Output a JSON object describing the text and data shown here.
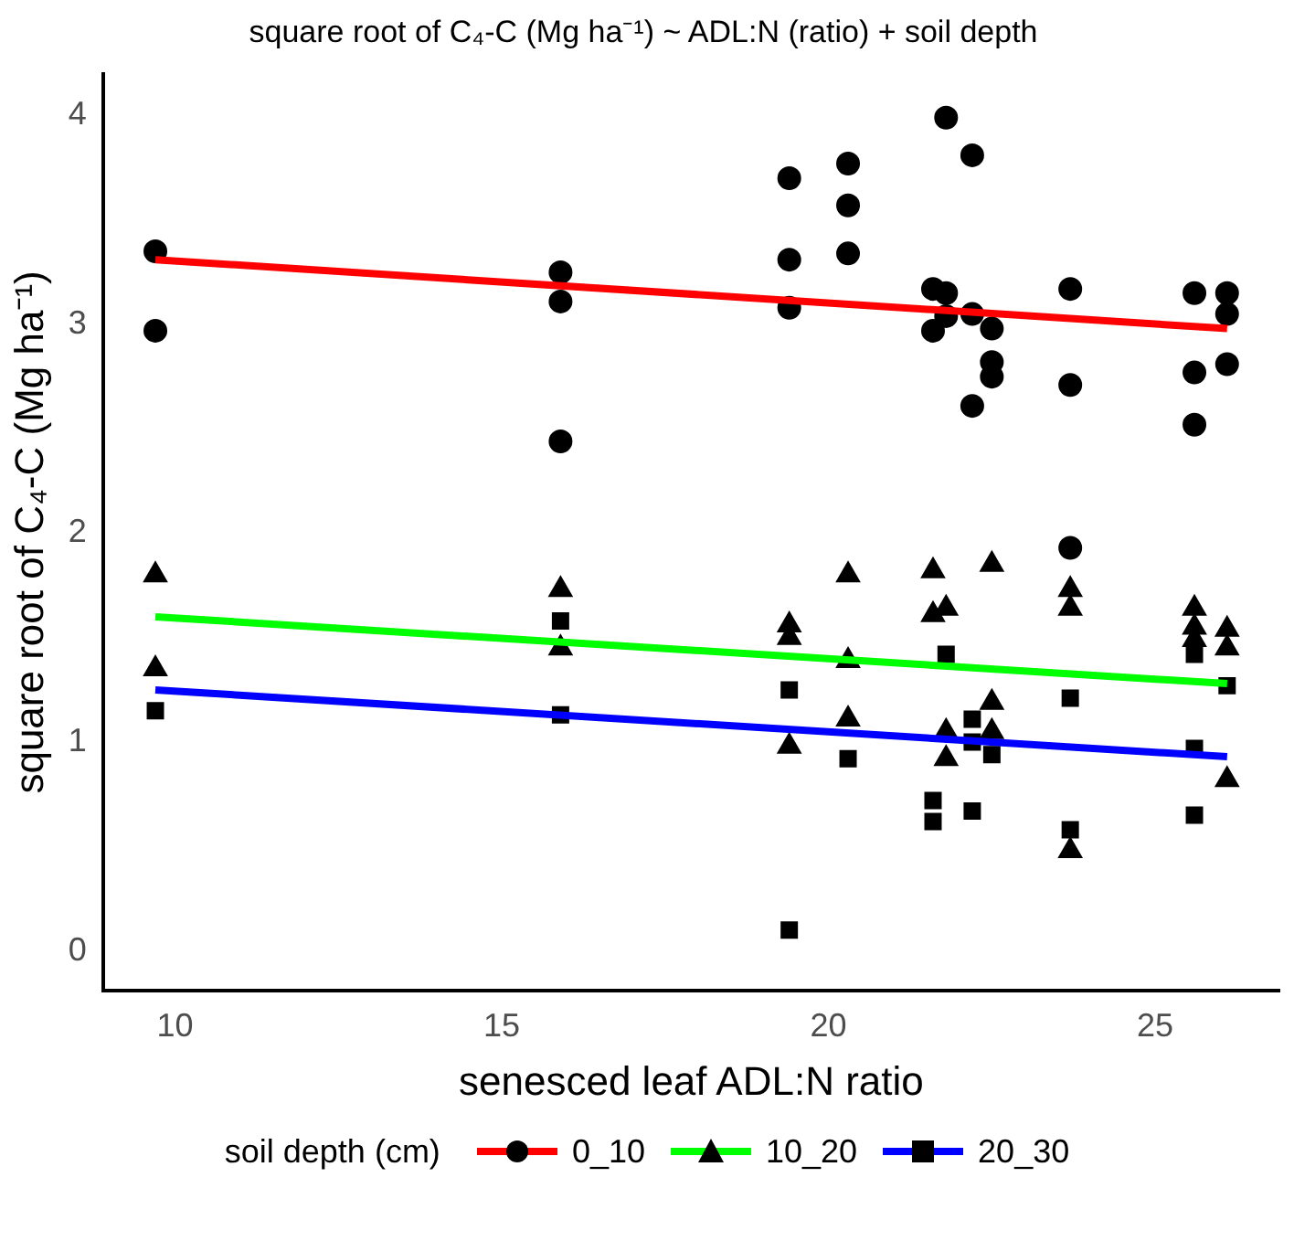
{
  "chart_data": {
    "type": "scatter",
    "title": "square root of C₄-C (Mg ha⁻¹) ~ ADL:N (ratio) + soil depth",
    "xlabel": "senesced leaf ADL:N ratio",
    "ylabel": "square root of C₄-C (Mg ha⁻¹)",
    "legend_title": "soil depth (cm)",
    "legend": "bottom",
    "grid": false,
    "xlim": [
      8.9,
      26.9
    ],
    "xticks": [
      10,
      15,
      20,
      25
    ],
    "ylim": [
      -0.19,
      4.2
    ],
    "yticks": [
      0,
      1,
      2,
      3,
      4
    ],
    "series": [
      {
        "name": "0_10",
        "type": "scatter",
        "marker": "circle",
        "color": "#000000",
        "x": [
          9.7,
          9.7,
          15.9,
          15.9,
          15.9,
          19.4,
          19.4,
          19.4,
          20.3,
          20.3,
          20.3,
          21.8,
          22.2,
          21.6,
          21.8,
          21.8,
          21.6,
          22.2,
          22.5,
          22.5,
          22.5,
          22.2,
          23.7,
          23.7,
          23.7,
          25.6,
          25.6,
          25.6,
          26.1,
          26.1,
          26.1
        ],
        "values": [
          3.35,
          2.97,
          3.25,
          3.11,
          2.44,
          3.7,
          3.31,
          3.08,
          3.77,
          3.57,
          3.34,
          3.99,
          3.81,
          3.17,
          3.15,
          3.04,
          2.97,
          3.05,
          2.98,
          2.82,
          2.75,
          2.61,
          3.17,
          2.71,
          1.93,
          3.15,
          2.77,
          2.52,
          3.15,
          3.05,
          2.81
        ]
      },
      {
        "name": "10_20",
        "type": "scatter",
        "marker": "triangle",
        "color": "#000000",
        "x": [
          9.7,
          9.7,
          15.9,
          15.9,
          19.4,
          19.4,
          19.4,
          20.3,
          20.3,
          20.3,
          21.6,
          21.6,
          21.8,
          22.5,
          22.5,
          22.5,
          21.8,
          21.8,
          23.7,
          23.7,
          23.7,
          25.6,
          25.6,
          25.6,
          26.1,
          26.1,
          26.1
        ],
        "values": [
          1.8,
          1.35,
          1.73,
          1.45,
          1.56,
          1.5,
          0.98,
          1.8,
          1.39,
          1.11,
          1.82,
          1.61,
          1.64,
          1.85,
          1.19,
          1.05,
          1.05,
          0.92,
          1.73,
          1.64,
          0.48,
          1.64,
          1.55,
          1.49,
          1.54,
          1.45,
          0.82
        ]
      },
      {
        "name": "20_30",
        "type": "scatter",
        "marker": "square",
        "color": "#000000",
        "x": [
          9.7,
          15.9,
          15.9,
          19.4,
          19.4,
          20.3,
          21.8,
          21.6,
          21.6,
          22.2,
          22.2,
          22.2,
          22.5,
          23.7,
          23.7,
          25.6,
          25.6,
          25.6,
          26.1
        ],
        "values": [
          1.15,
          1.58,
          1.13,
          1.25,
          0.1,
          0.92,
          1.42,
          0.72,
          0.62,
          1.11,
          1.0,
          0.67,
          0.94,
          1.21,
          0.58,
          1.42,
          0.97,
          0.65,
          1.27
        ]
      },
      {
        "type": "line",
        "color": "#ff0000",
        "x": [
          9.7,
          26.1
        ],
        "values": [
          3.31,
          2.98
        ]
      },
      {
        "type": "line",
        "color": "#00ff00",
        "x": [
          9.7,
          26.1
        ],
        "values": [
          1.6,
          1.28
        ]
      },
      {
        "type": "line",
        "color": "#0000ff",
        "x": [
          9.7,
          26.1
        ],
        "values": [
          1.25,
          0.93
        ]
      }
    ]
  }
}
